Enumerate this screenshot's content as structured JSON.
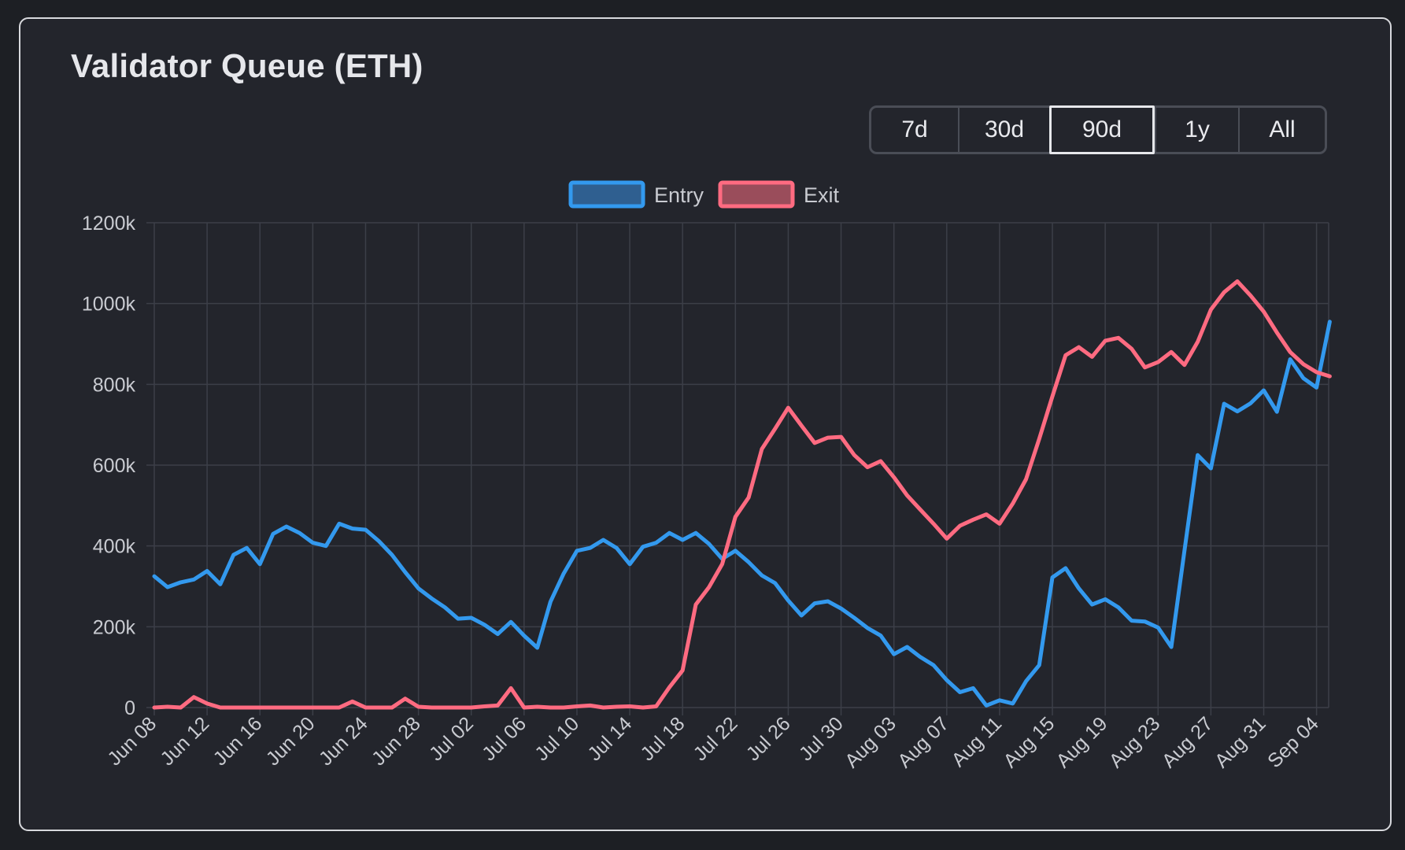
{
  "panel": {
    "title": "Validator Queue (ETH)",
    "ranges": [
      "7d",
      "30d",
      "90d",
      "1y",
      "All"
    ],
    "active_range": "90d"
  },
  "colors": {
    "background": "#1d1f24",
    "card": "#23252c",
    "grid": "#3c3f48",
    "entry": "#3399ee",
    "exit": "#ff6b81"
  },
  "chart_data": {
    "type": "line",
    "title": "",
    "xlabel": "",
    "ylabel": "",
    "ylim": [
      0,
      1200000
    ],
    "y_ticks": [
      "0",
      "200k",
      "400k",
      "600k",
      "800k",
      "1000k",
      "1200k"
    ],
    "x_tick_labels": [
      "Jun 08",
      "Jun 12",
      "Jun 16",
      "Jun 20",
      "Jun 24",
      "Jun 28",
      "Jul 02",
      "Jul 06",
      "Jul 10",
      "Jul 14",
      "Jul 18",
      "Jul 22",
      "Jul 26",
      "Jul 30",
      "Aug 03",
      "Aug 07",
      "Aug 11",
      "Aug 15",
      "Aug 19",
      "Aug 23",
      "Aug 27",
      "Aug 31",
      "Sep 04"
    ],
    "x_start": "Jun 08",
    "x_end": "Sep 05",
    "grid": true,
    "legend_position": "top-center",
    "series": [
      {
        "name": "Entry",
        "color": "#3399ee",
        "values": [
          325000,
          298000,
          310000,
          317000,
          338000,
          305000,
          378000,
          395000,
          355000,
          430000,
          448000,
          432000,
          408000,
          400000,
          455000,
          443000,
          440000,
          412000,
          378000,
          335000,
          295000,
          270000,
          248000,
          220000,
          222000,
          205000,
          182000,
          212000,
          178000,
          148000,
          262000,
          332000,
          388000,
          395000,
          415000,
          395000,
          355000,
          398000,
          408000,
          432000,
          415000,
          432000,
          405000,
          368000,
          388000,
          360000,
          327000,
          308000,
          265000,
          228000,
          258000,
          263000,
          245000,
          222000,
          197000,
          178000,
          132000,
          150000,
          125000,
          105000,
          68000,
          38000,
          48000,
          5000,
          18000,
          10000,
          65000,
          105000,
          322000,
          345000,
          295000,
          255000,
          268000,
          248000,
          215000,
          213000,
          198000,
          150000,
          388000,
          625000,
          592000,
          752000,
          733000,
          753000,
          785000,
          732000,
          862000,
          815000,
          792000,
          955000
        ]
      },
      {
        "name": "Exit",
        "color": "#ff6b81",
        "values": [
          0,
          2000,
          0,
          26000,
          10000,
          0,
          0,
          0,
          0,
          0,
          0,
          0,
          0,
          0,
          0,
          15000,
          0,
          0,
          0,
          22000,
          2000,
          0,
          0,
          0,
          0,
          3000,
          5000,
          48000,
          0,
          2000,
          0,
          0,
          3000,
          5000,
          0,
          2000,
          3000,
          0,
          3000,
          50000,
          92000,
          255000,
          298000,
          355000,
          472000,
          520000,
          640000,
          690000,
          742000,
          698000,
          655000,
          668000,
          670000,
          625000,
          595000,
          610000,
          570000,
          525000,
          490000,
          455000,
          418000,
          450000,
          465000,
          478000,
          455000,
          505000,
          565000,
          665000,
          770000,
          872000,
          892000,
          868000,
          908000,
          915000,
          888000,
          842000,
          855000,
          880000,
          848000,
          905000,
          985000,
          1028000,
          1055000,
          1020000,
          980000,
          928000,
          880000,
          850000,
          830000,
          820000
        ]
      }
    ]
  }
}
